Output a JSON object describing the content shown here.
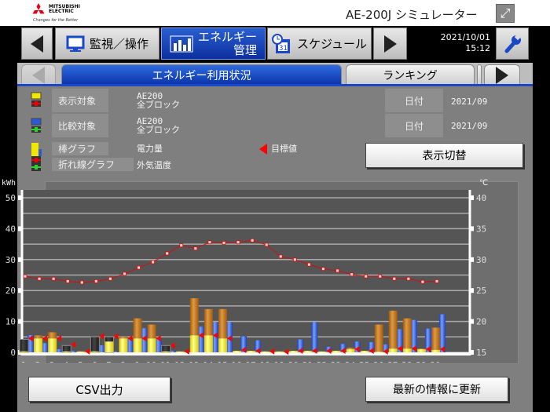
{
  "header": {
    "brand_lines": [
      "MITSUBISHI",
      "ELECTRIC"
    ],
    "brand_tagline": "Changes for the Better",
    "app_title": "AE-200J シミュレーター"
  },
  "nav": {
    "tabs": [
      {
        "label": "監視／操作",
        "icon": "monitor-icon"
      },
      {
        "label_line1": "エネルギー",
        "label_line2": "管理",
        "icon": "bar-chart-icon",
        "active": true
      },
      {
        "label": "スケジュール",
        "icon": "calendar-clock-icon",
        "calendar_day": "31"
      }
    ],
    "date": "2021/10/01",
    "time": "15:12"
  },
  "subnav": {
    "tabs": [
      {
        "label": "エネルギー利用状況",
        "active": true
      },
      {
        "label": "ランキング"
      }
    ]
  },
  "info": {
    "display_target": {
      "label": "表示対象",
      "name": "AE200",
      "scope": "全ブロック",
      "date_label": "日付",
      "date": "2021/09"
    },
    "compare_target": {
      "label": "比較対象",
      "name": "AE200",
      "scope": "全ブロック",
      "date_label": "日付",
      "date": "2021/09"
    },
    "bar_graph": {
      "label": "棒グラフ",
      "value": "電力量"
    },
    "line_graph": {
      "label": "折れ線グラフ",
      "value": "外気温度"
    },
    "target_legend": "目標値",
    "toggle_button": "表示切替"
  },
  "buttons": {
    "csv": "CSV出力",
    "refresh": "最新の情報に更新"
  },
  "colors": {
    "accent_blue": "#1a48c8",
    "bar_yellow": "#f2e600",
    "bar_orange": "#c87a1a",
    "bar_blue": "#2a5ad8",
    "bar_dark": "#2a2a2a",
    "target_red": "#ff0000",
    "line_red": "#cc1111"
  },
  "chart_data": {
    "type": "bar",
    "ylabel_left": "kWh",
    "ylabel_right": "℃",
    "ylim_left": [
      0,
      50
    ],
    "yticks_left": [
      "0",
      "10",
      "20",
      "30",
      "40",
      "50"
    ],
    "ylim_right": [
      15,
      40
    ],
    "yticks_right": [
      "15",
      "20",
      "25",
      "30",
      "35",
      "40"
    ],
    "grid": true,
    "categories": [
      "1",
      "2",
      "3",
      "4",
      "5",
      "6",
      "7",
      "8",
      "9",
      "10",
      "11",
      "12",
      "13",
      "14",
      "15",
      "16",
      "17",
      "18",
      "19",
      "20",
      "21",
      "22",
      "23",
      "24",
      "25",
      "26",
      "27",
      "28",
      "29",
      "30"
    ],
    "series": [
      {
        "role": "display-yellow",
        "values": [
          0.3,
          4.5,
          4.5,
          0.3,
          0.3,
          0.3,
          3.5,
          4.5,
          4.5,
          4.5,
          0.3,
          0.3,
          5.5,
          5.5,
          4.5,
          0.5,
          0.5,
          0.3,
          0.3,
          0.5,
          0.5,
          0.3,
          0.5,
          1.0,
          0.5,
          0.2,
          1.2,
          1.2,
          1.0,
          0.8
        ]
      },
      {
        "role": "display-orange-total",
        "values": [
          0,
          5.5,
          6.5,
          0,
          0,
          0,
          0,
          5,
          11,
          9,
          0,
          0,
          17.5,
          14,
          14,
          0,
          0,
          0,
          0,
          0,
          0,
          0,
          0,
          1.5,
          0,
          9,
          13.5,
          11,
          1.2,
          8
        ]
      },
      {
        "role": "display-dark",
        "values": [
          4.2,
          0,
          0,
          2.2,
          0,
          5,
          5,
          0,
          0,
          0,
          2.2,
          0,
          0,
          0,
          0,
          0,
          0,
          0,
          0,
          0,
          0,
          0,
          0,
          0,
          0,
          0,
          0,
          0,
          0,
          0
        ]
      },
      {
        "role": "compare-blue",
        "values": [
          5.6,
          3,
          1,
          0.5,
          0,
          2.3,
          0.3,
          4.5,
          7.8,
          4.5,
          0.5,
          0.2,
          8.3,
          9.8,
          9.8,
          5.2,
          3.9,
          0,
          0,
          4.2,
          9.8,
          1.8,
          2.7,
          3.5,
          3.3,
          2.6,
          7.5,
          10.5,
          7.7,
          12.3
        ]
      },
      {
        "role": "target",
        "values": [
          4.5,
          4.5,
          4.5,
          2.5,
          0.3,
          5.2,
          5.2,
          4.5,
          4.5,
          4.5,
          2.2,
          0.3,
          5.5,
          5.5,
          4.5,
          0.8,
          0.5,
          0.3,
          0.2,
          0.5,
          0.5,
          0.5,
          0.5,
          1,
          0.5,
          0.3,
          1.2,
          1.2,
          1,
          1
        ]
      },
      {
        "role": "outdoor-temp-line",
        "axis": "right",
        "values": [
          27.3,
          26.9,
          26.9,
          26.5,
          26.3,
          26.5,
          26.9,
          27.7,
          28.7,
          29.6,
          31.0,
          32.3,
          31.8,
          32.8,
          32.7,
          32.8,
          33.1,
          32.4,
          30.5,
          30.0,
          29.2,
          28.5,
          28.2,
          27.6,
          27.3,
          27.3,
          26.9,
          26.9,
          26.4,
          26.5
        ]
      }
    ]
  }
}
